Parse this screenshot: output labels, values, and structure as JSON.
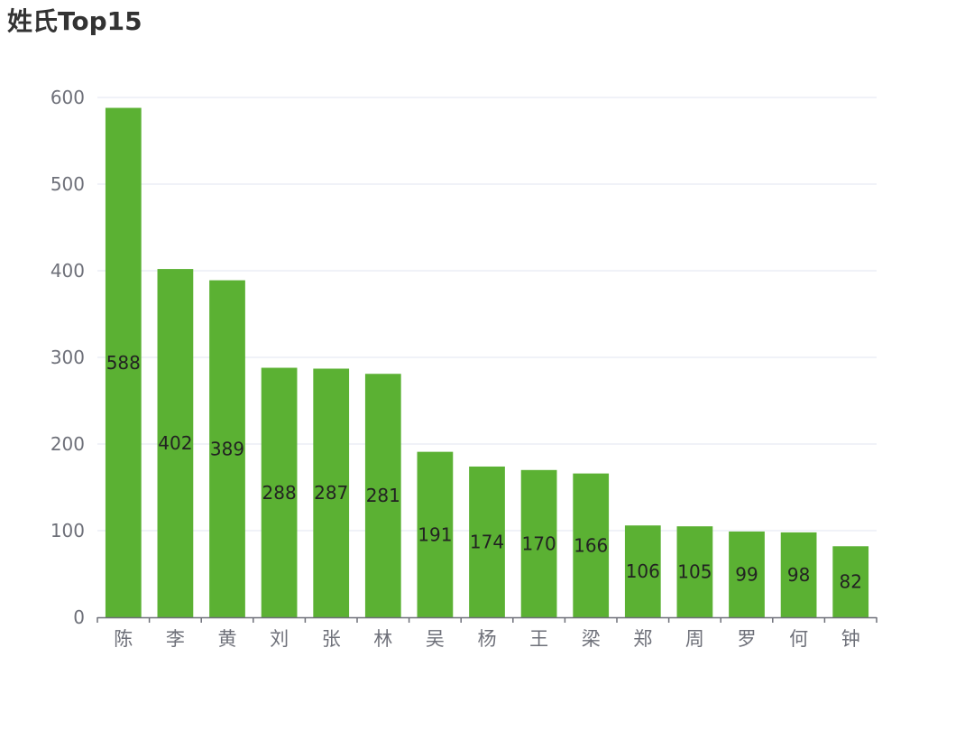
{
  "chart_data": {
    "type": "bar",
    "title": "姓氏Top15",
    "categories": [
      "陈",
      "李",
      "黄",
      "刘",
      "张",
      "林",
      "吴",
      "杨",
      "王",
      "梁",
      "郑",
      "周",
      "罗",
      "何",
      "钟"
    ],
    "values": [
      588,
      402,
      389,
      288,
      287,
      281,
      191,
      174,
      170,
      166,
      106,
      105,
      99,
      98,
      82
    ],
    "ylim": [
      0,
      600
    ],
    "yticks": [
      0,
      100,
      200,
      300,
      400,
      500,
      600
    ],
    "xlabel": "",
    "ylabel": "",
    "grid": true,
    "legend": "none",
    "bar_color": "#5bb133",
    "label_position": "inside-middle"
  }
}
